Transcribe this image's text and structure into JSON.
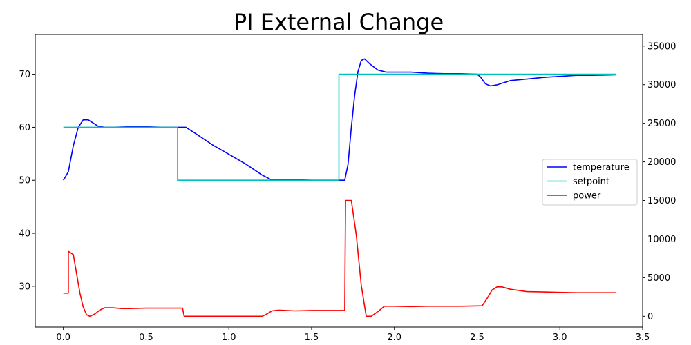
{
  "chart_data": {
    "type": "line",
    "title": "PI External Change",
    "xlabel": "",
    "ylabel": "",
    "y2label": "",
    "xlim": [
      -0.17,
      3.5
    ],
    "ylim": [
      22.3,
      77.5
    ],
    "y2lim": [
      -1400,
      36500
    ],
    "xticks": [
      0.0,
      0.5,
      1.0,
      1.5,
      2.0,
      2.5,
      3.0,
      3.5
    ],
    "xtick_labels": [
      "0.0",
      "0.5",
      "1.0",
      "1.5",
      "2.0",
      "2.5",
      "3.0",
      "3.5"
    ],
    "yticks": [
      30,
      40,
      50,
      60,
      70
    ],
    "ytick_labels": [
      "30",
      "40",
      "50",
      "60",
      "70"
    ],
    "y2ticks": [
      0,
      5000,
      10000,
      15000,
      20000,
      25000,
      30000,
      35000
    ],
    "y2tick_labels": [
      "0",
      "5000",
      "10000",
      "15000",
      "20000",
      "25000",
      "30000",
      "35000"
    ],
    "grid": false,
    "legend_position": "center-right",
    "series": [
      {
        "name": "temperature",
        "axis": "left",
        "color": "#0000ff",
        "points": [
          [
            0.0,
            50.0
          ],
          [
            0.03,
            51.6
          ],
          [
            0.06,
            56.5
          ],
          [
            0.09,
            60.0
          ],
          [
            0.12,
            61.4
          ],
          [
            0.15,
            61.4
          ],
          [
            0.18,
            60.8
          ],
          [
            0.21,
            60.2
          ],
          [
            0.25,
            60.0
          ],
          [
            0.3,
            60.0
          ],
          [
            0.4,
            60.1
          ],
          [
            0.5,
            60.1
          ],
          [
            0.6,
            60.0
          ],
          [
            0.72,
            60.0
          ],
          [
            0.74,
            60.0
          ],
          [
            0.8,
            58.8
          ],
          [
            0.9,
            56.7
          ],
          [
            1.0,
            54.9
          ],
          [
            1.1,
            53.1
          ],
          [
            1.2,
            51.0
          ],
          [
            1.25,
            50.2
          ],
          [
            1.3,
            50.1
          ],
          [
            1.4,
            50.1
          ],
          [
            1.5,
            50.0
          ],
          [
            1.6,
            50.0
          ],
          [
            1.7,
            50.0
          ],
          [
            1.72,
            53.0
          ],
          [
            1.74,
            60.0
          ],
          [
            1.76,
            66.0
          ],
          [
            1.78,
            70.5
          ],
          [
            1.8,
            72.6
          ],
          [
            1.82,
            72.9
          ],
          [
            1.85,
            72.0
          ],
          [
            1.9,
            70.8
          ],
          [
            1.95,
            70.4
          ],
          [
            2.0,
            70.4
          ],
          [
            2.1,
            70.4
          ],
          [
            2.2,
            70.2
          ],
          [
            2.3,
            70.1
          ],
          [
            2.4,
            70.1
          ],
          [
            2.5,
            70.0
          ],
          [
            2.52,
            69.5
          ],
          [
            2.55,
            68.2
          ],
          [
            2.58,
            67.8
          ],
          [
            2.62,
            68.0
          ],
          [
            2.7,
            68.8
          ],
          [
            2.8,
            69.1
          ],
          [
            2.9,
            69.4
          ],
          [
            3.0,
            69.6
          ],
          [
            3.1,
            69.8
          ],
          [
            3.2,
            69.8
          ],
          [
            3.34,
            69.9
          ]
        ]
      },
      {
        "name": "setpoint",
        "axis": "left",
        "color": "#00bfbf",
        "points": [
          [
            0.0,
            60.0
          ],
          [
            0.69,
            60.0
          ],
          [
            0.69,
            50.0
          ],
          [
            1.665,
            50.0
          ],
          [
            1.665,
            70.0
          ],
          [
            3.34,
            70.0
          ]
        ]
      },
      {
        "name": "power",
        "axis": "right",
        "color": "#ff0000",
        "points": [
          [
            0.0,
            3000
          ],
          [
            0.03,
            3000
          ],
          [
            0.03,
            8400
          ],
          [
            0.06,
            8000
          ],
          [
            0.08,
            5500
          ],
          [
            0.1,
            3000
          ],
          [
            0.12,
            1200
          ],
          [
            0.14,
            200
          ],
          [
            0.16,
            0
          ],
          [
            0.19,
            300
          ],
          [
            0.22,
            800
          ],
          [
            0.25,
            1100
          ],
          [
            0.3,
            1100
          ],
          [
            0.35,
            1000
          ],
          [
            0.4,
            1000
          ],
          [
            0.5,
            1050
          ],
          [
            0.6,
            1050
          ],
          [
            0.7,
            1050
          ],
          [
            0.72,
            1050
          ],
          [
            0.73,
            0
          ],
          [
            1.2,
            0
          ],
          [
            1.23,
            300
          ],
          [
            1.26,
            700
          ],
          [
            1.3,
            800
          ],
          [
            1.4,
            700
          ],
          [
            1.5,
            750
          ],
          [
            1.6,
            750
          ],
          [
            1.7,
            750
          ],
          [
            1.705,
            15000
          ],
          [
            1.74,
            15000
          ],
          [
            1.77,
            10500
          ],
          [
            1.8,
            4000
          ],
          [
            1.83,
            0
          ],
          [
            1.86,
            0
          ],
          [
            1.9,
            600
          ],
          [
            1.94,
            1300
          ],
          [
            2.0,
            1300
          ],
          [
            2.1,
            1250
          ],
          [
            2.2,
            1300
          ],
          [
            2.3,
            1300
          ],
          [
            2.4,
            1300
          ],
          [
            2.53,
            1350
          ],
          [
            2.56,
            2300
          ],
          [
            2.59,
            3400
          ],
          [
            2.62,
            3800
          ],
          [
            2.65,
            3800
          ],
          [
            2.7,
            3500
          ],
          [
            2.8,
            3200
          ],
          [
            2.9,
            3150
          ],
          [
            3.0,
            3100
          ],
          [
            3.1,
            3050
          ],
          [
            3.2,
            3050
          ],
          [
            3.34,
            3050
          ]
        ]
      }
    ]
  }
}
